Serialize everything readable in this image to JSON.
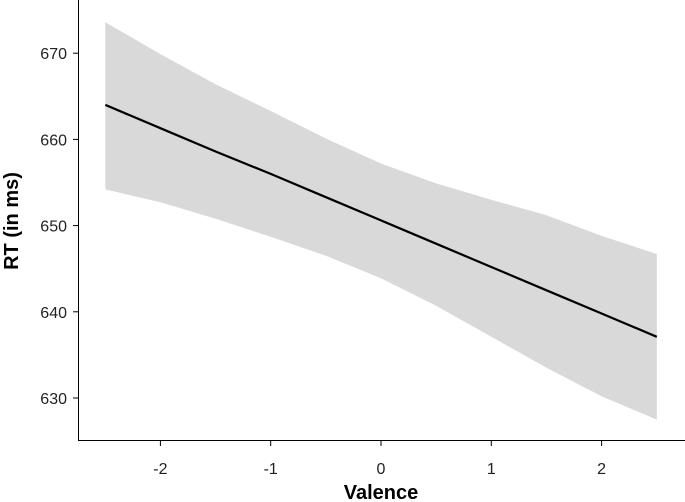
{
  "chart_data": {
    "type": "line",
    "title": "",
    "xlabel": "Valence",
    "ylabel": "RT (in ms)",
    "xlim": [
      -2.7,
      2.75
    ],
    "ylim": [
      625,
      676
    ],
    "x_ticks": [
      -2,
      -1,
      0,
      1,
      2
    ],
    "x_tick_labels": [
      "-2",
      "-1",
      "0",
      "1",
      "2"
    ],
    "y_ticks": [
      630,
      640,
      650,
      660,
      670
    ],
    "y_tick_labels": [
      "630",
      "640",
      "650",
      "660",
      "670"
    ],
    "grid": false,
    "legend": "none",
    "series": [
      {
        "x": [
          -2.5,
          -2,
          -1.5,
          -1,
          -0.5,
          0,
          0.5,
          1,
          1.5,
          2,
          2.5
        ],
        "y": [
          664.0,
          661.3,
          658.6,
          656.0,
          653.3,
          650.6,
          647.9,
          645.2,
          642.5,
          639.8,
          637.1
        ],
        "ci_lower": [
          654.2,
          652.7,
          650.8,
          648.7,
          646.5,
          643.9,
          640.7,
          637.1,
          633.5,
          630.2,
          627.5
        ],
        "ci_upper": [
          673.6,
          669.9,
          666.4,
          663.3,
          660.1,
          657.2,
          654.9,
          653.0,
          651.2,
          648.8,
          646.7
        ]
      }
    ],
    "colors": {
      "line": "#000000",
      "band": "#d9d9d9",
      "axis": "#000000"
    }
  }
}
